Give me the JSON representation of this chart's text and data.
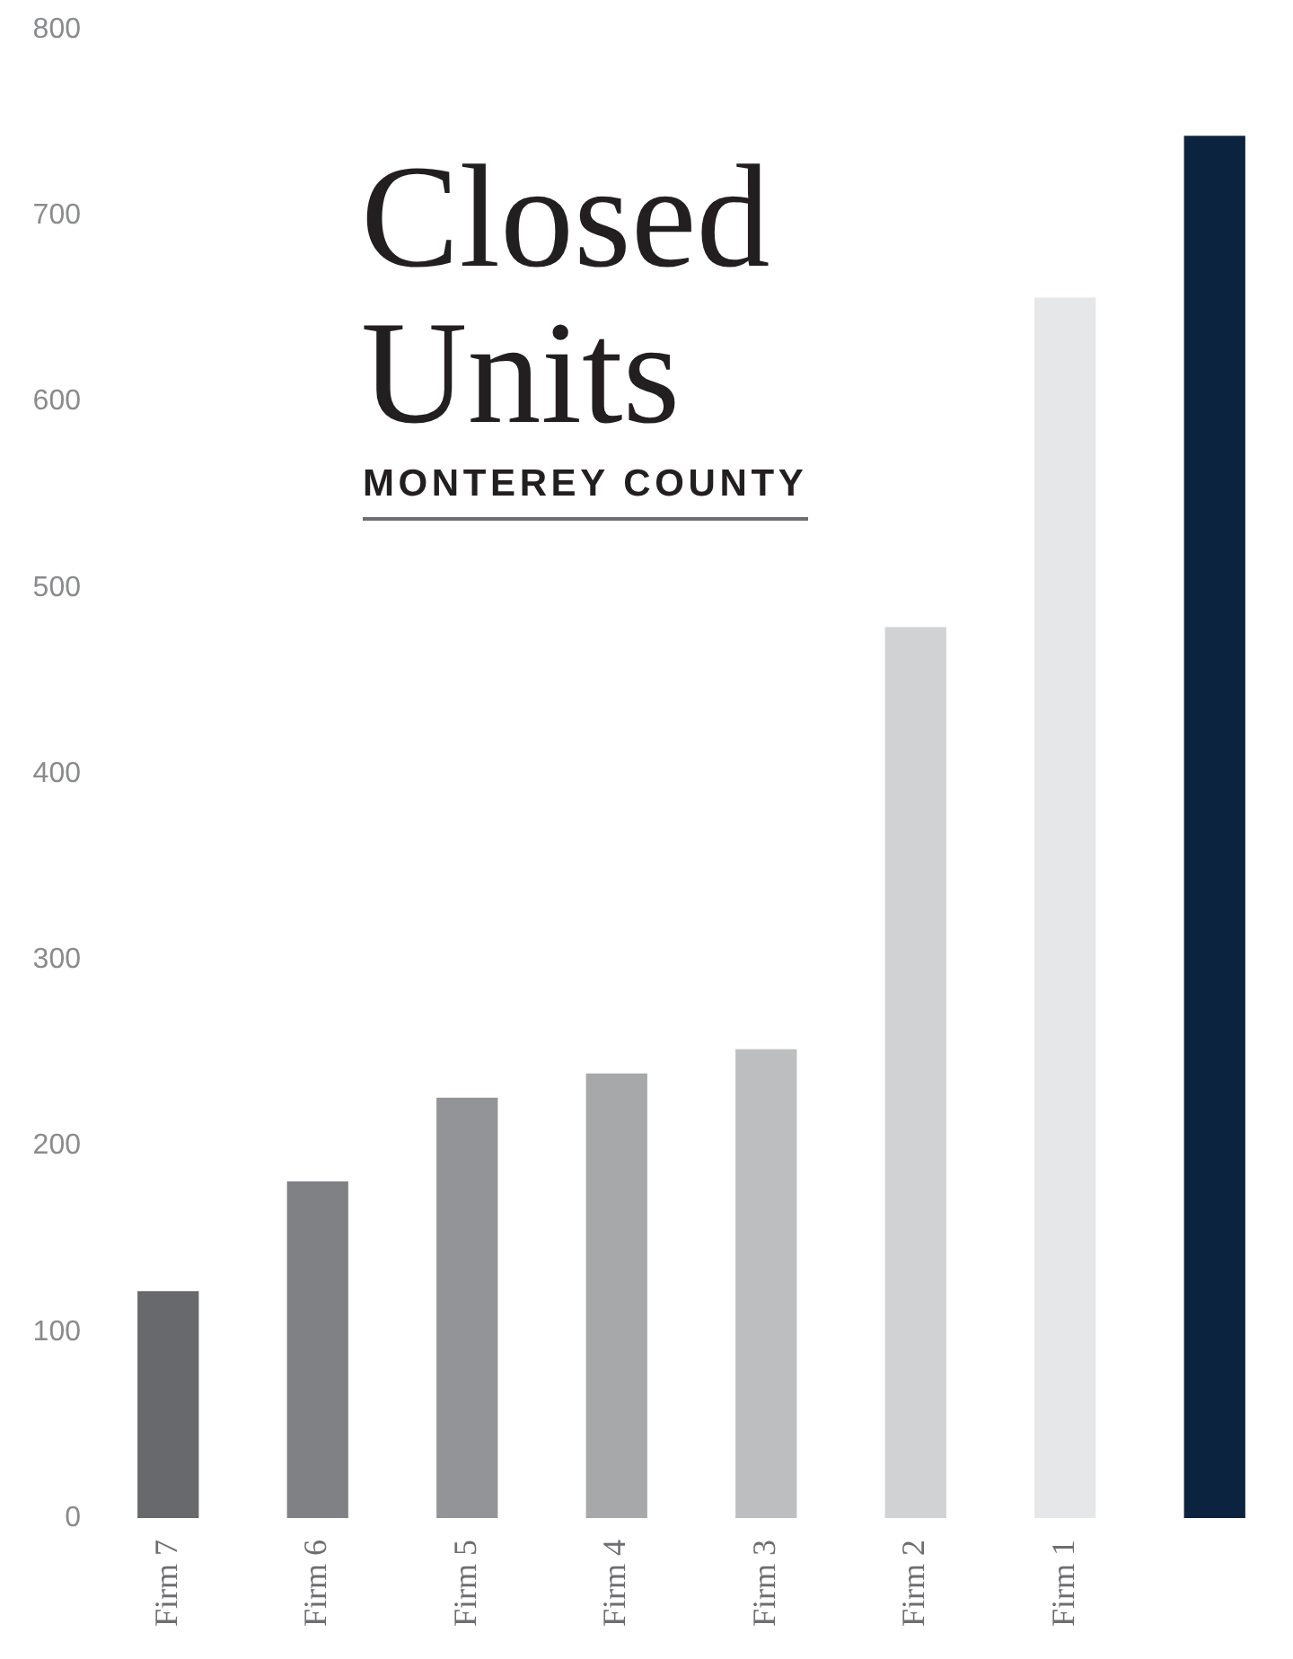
{
  "chart_data": {
    "type": "bar",
    "title": "Closed Units",
    "subtitle": "MONTEREY COUNTY",
    "categories": [
      "Firm 7",
      "Firm 6",
      "Firm 5",
      "Firm 4",
      "Firm 3",
      "Firm 2",
      "Firm 1",
      null
    ],
    "values": [
      122,
      181,
      226,
      239,
      252,
      479,
      656,
      743
    ],
    "colors": [
      "#68696d",
      "#808184",
      "#939497",
      "#a7a8aa",
      "#bdbec0",
      "#d1d2d4",
      "#e6e7e8",
      "#0c2340"
    ],
    "ylim": [
      0,
      800
    ],
    "yticks": [
      0,
      100,
      200,
      300,
      400,
      500,
      600,
      700,
      800
    ]
  }
}
